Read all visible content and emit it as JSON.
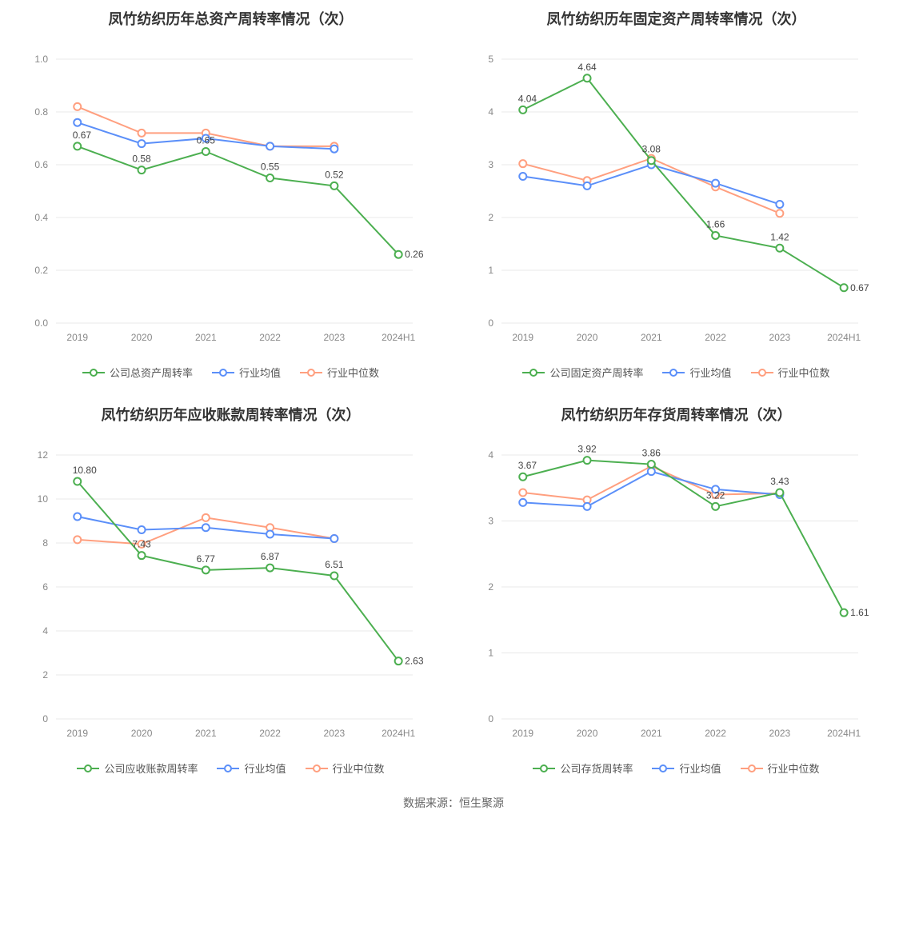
{
  "source_label": "数据来源：恒生聚源",
  "colors": {
    "company": "#4caf50",
    "mean": "#5b8ff9",
    "median": "#ff9f7f",
    "grid": "#e8e8e8",
    "axis_text": "#888888",
    "data_label": "#444444",
    "title": "#333333",
    "background": "#ffffff"
  },
  "style": {
    "line_width": 2,
    "marker_radius": 4.5,
    "marker_stroke": 2,
    "title_fontsize": 18,
    "axis_fontsize": 12,
    "label_fontsize": 12
  },
  "legend_labels": {
    "mean": "行业均值",
    "median": "行业中位数"
  },
  "charts": [
    {
      "id": "total_asset",
      "title": "凤竹纺织历年总资产周转率情况（次）",
      "company_legend": "公司总资产周转率",
      "categories": [
        "2019",
        "2020",
        "2021",
        "2022",
        "2023",
        "2024H1"
      ],
      "ylim": [
        0,
        1
      ],
      "ytick_step": 0.2,
      "y_decimals": 1,
      "series": {
        "company": {
          "values": [
            0.67,
            0.58,
            0.65,
            0.55,
            0.52,
            0.26
          ],
          "show_labels": true,
          "label_decimals": 2
        },
        "mean": {
          "values": [
            0.76,
            0.68,
            0.7,
            0.67,
            0.66,
            null
          ],
          "show_labels": false
        },
        "median": {
          "values": [
            0.82,
            0.72,
            0.72,
            0.67,
            0.67,
            null
          ],
          "show_labels": false
        }
      }
    },
    {
      "id": "fixed_asset",
      "title": "凤竹纺织历年固定资产周转率情况（次）",
      "company_legend": "公司固定资产周转率",
      "categories": [
        "2019",
        "2020",
        "2021",
        "2022",
        "2023",
        "2024H1"
      ],
      "ylim": [
        0,
        5
      ],
      "ytick_step": 1,
      "y_decimals": 0,
      "series": {
        "company": {
          "values": [
            4.04,
            4.64,
            3.08,
            1.66,
            1.42,
            0.67
          ],
          "show_labels": true,
          "label_decimals": 2
        },
        "mean": {
          "values": [
            2.78,
            2.6,
            3.0,
            2.65,
            2.25,
            null
          ],
          "show_labels": false
        },
        "median": {
          "values": [
            3.02,
            2.7,
            3.12,
            2.58,
            2.08,
            null
          ],
          "show_labels": false
        }
      }
    },
    {
      "id": "receivables",
      "title": "凤竹纺织历年应收账款周转率情况（次）",
      "company_legend": "公司应收账款周转率",
      "categories": [
        "2019",
        "2020",
        "2021",
        "2022",
        "2023",
        "2024H1"
      ],
      "ylim": [
        0,
        12
      ],
      "ytick_step": 2,
      "y_decimals": 0,
      "series": {
        "company": {
          "values": [
            10.8,
            7.43,
            6.77,
            6.87,
            6.51,
            2.63
          ],
          "show_labels": true,
          "label_decimals": 2
        },
        "mean": {
          "values": [
            9.2,
            8.6,
            8.7,
            8.4,
            8.2,
            null
          ],
          "show_labels": false
        },
        "median": {
          "values": [
            8.15,
            7.95,
            9.15,
            8.7,
            8.2,
            null
          ],
          "show_labels": false
        }
      }
    },
    {
      "id": "inventory",
      "title": "凤竹纺织历年存货周转率情况（次）",
      "company_legend": "公司存货周转率",
      "categories": [
        "2019",
        "2020",
        "2021",
        "2022",
        "2023",
        "2024H1"
      ],
      "ylim": [
        0,
        4
      ],
      "ytick_step": 1,
      "y_decimals": 0,
      "series": {
        "company": {
          "values": [
            3.67,
            3.92,
            3.86,
            3.22,
            3.43,
            1.61
          ],
          "show_labels": true,
          "label_decimals": 2
        },
        "mean": {
          "values": [
            3.28,
            3.22,
            3.75,
            3.48,
            3.4,
            null
          ],
          "show_labels": false
        },
        "median": {
          "values": [
            3.43,
            3.32,
            3.83,
            3.4,
            3.42,
            null
          ],
          "show_labels": false
        }
      }
    }
  ]
}
